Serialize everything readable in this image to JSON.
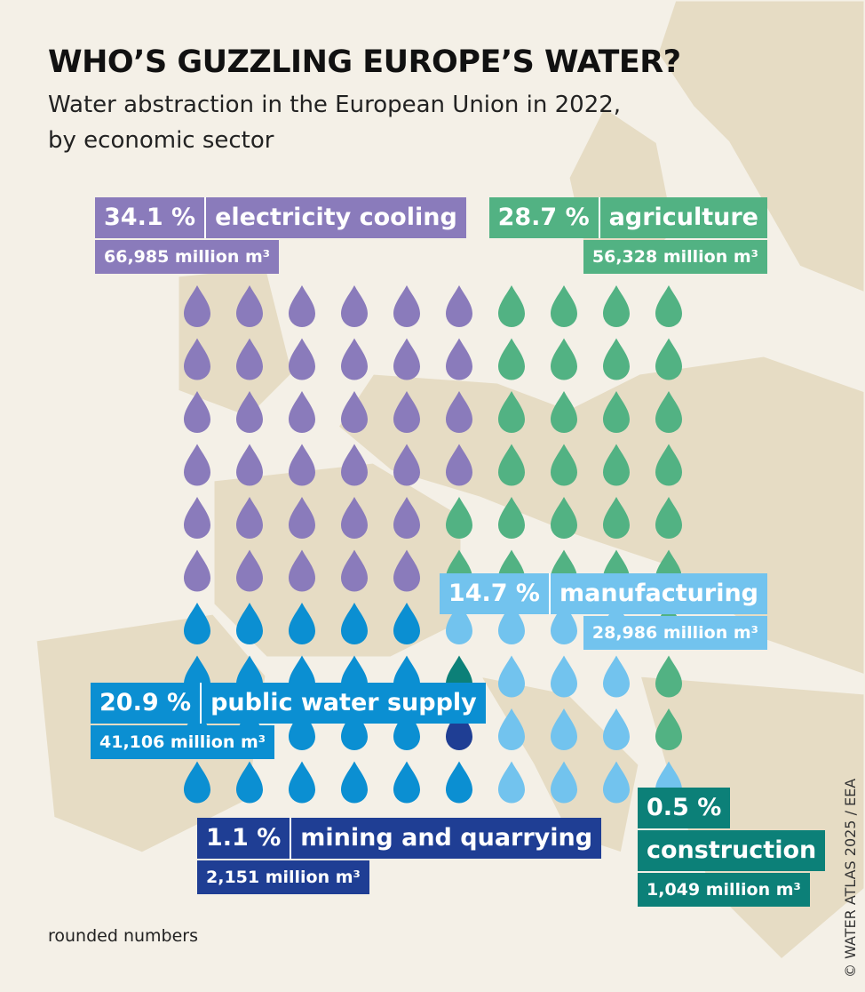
{
  "chart_data": {
    "type": "waffle",
    "title": "WHO’S GUZZLING EUROPE’S WATER?",
    "subtitle": "Water abstraction in the European Union in 2022, by economic sector",
    "series": [
      {
        "name": "electricity cooling",
        "color": "#8a7bbb",
        "value": 34.1,
        "value_label": "34.1 %",
        "volume_label": "66,985 million m³"
      },
      {
        "name": "agriculture",
        "color": "#52b283",
        "value": 28.7,
        "value_label": "28.7 %",
        "volume_label": "56,328 million m³"
      },
      {
        "name": "manufacturing",
        "color": "#72c3ee",
        "value": 14.7,
        "value_label": "14.7 %",
        "volume_label": "28,986 million m³"
      },
      {
        "name": "construction",
        "color": "#0c8078",
        "value": 0.5,
        "value_label": "0.5 %",
        "volume_label": "1,049 million m³"
      },
      {
        "name": "mining and quarrying",
        "color": "#1f3e94",
        "value": 1.1,
        "value_label": "1.1 %",
        "volume_label": "2,151 million m³"
      },
      {
        "name": "public water supply",
        "color": "#0b8fd2",
        "value": 20.9,
        "value_label": "20.9 %",
        "volume_label": "41,106 million m³"
      }
    ],
    "note": "rounded numbers",
    "credit": "© WATER ATLAS 2025 / EEA"
  }
}
